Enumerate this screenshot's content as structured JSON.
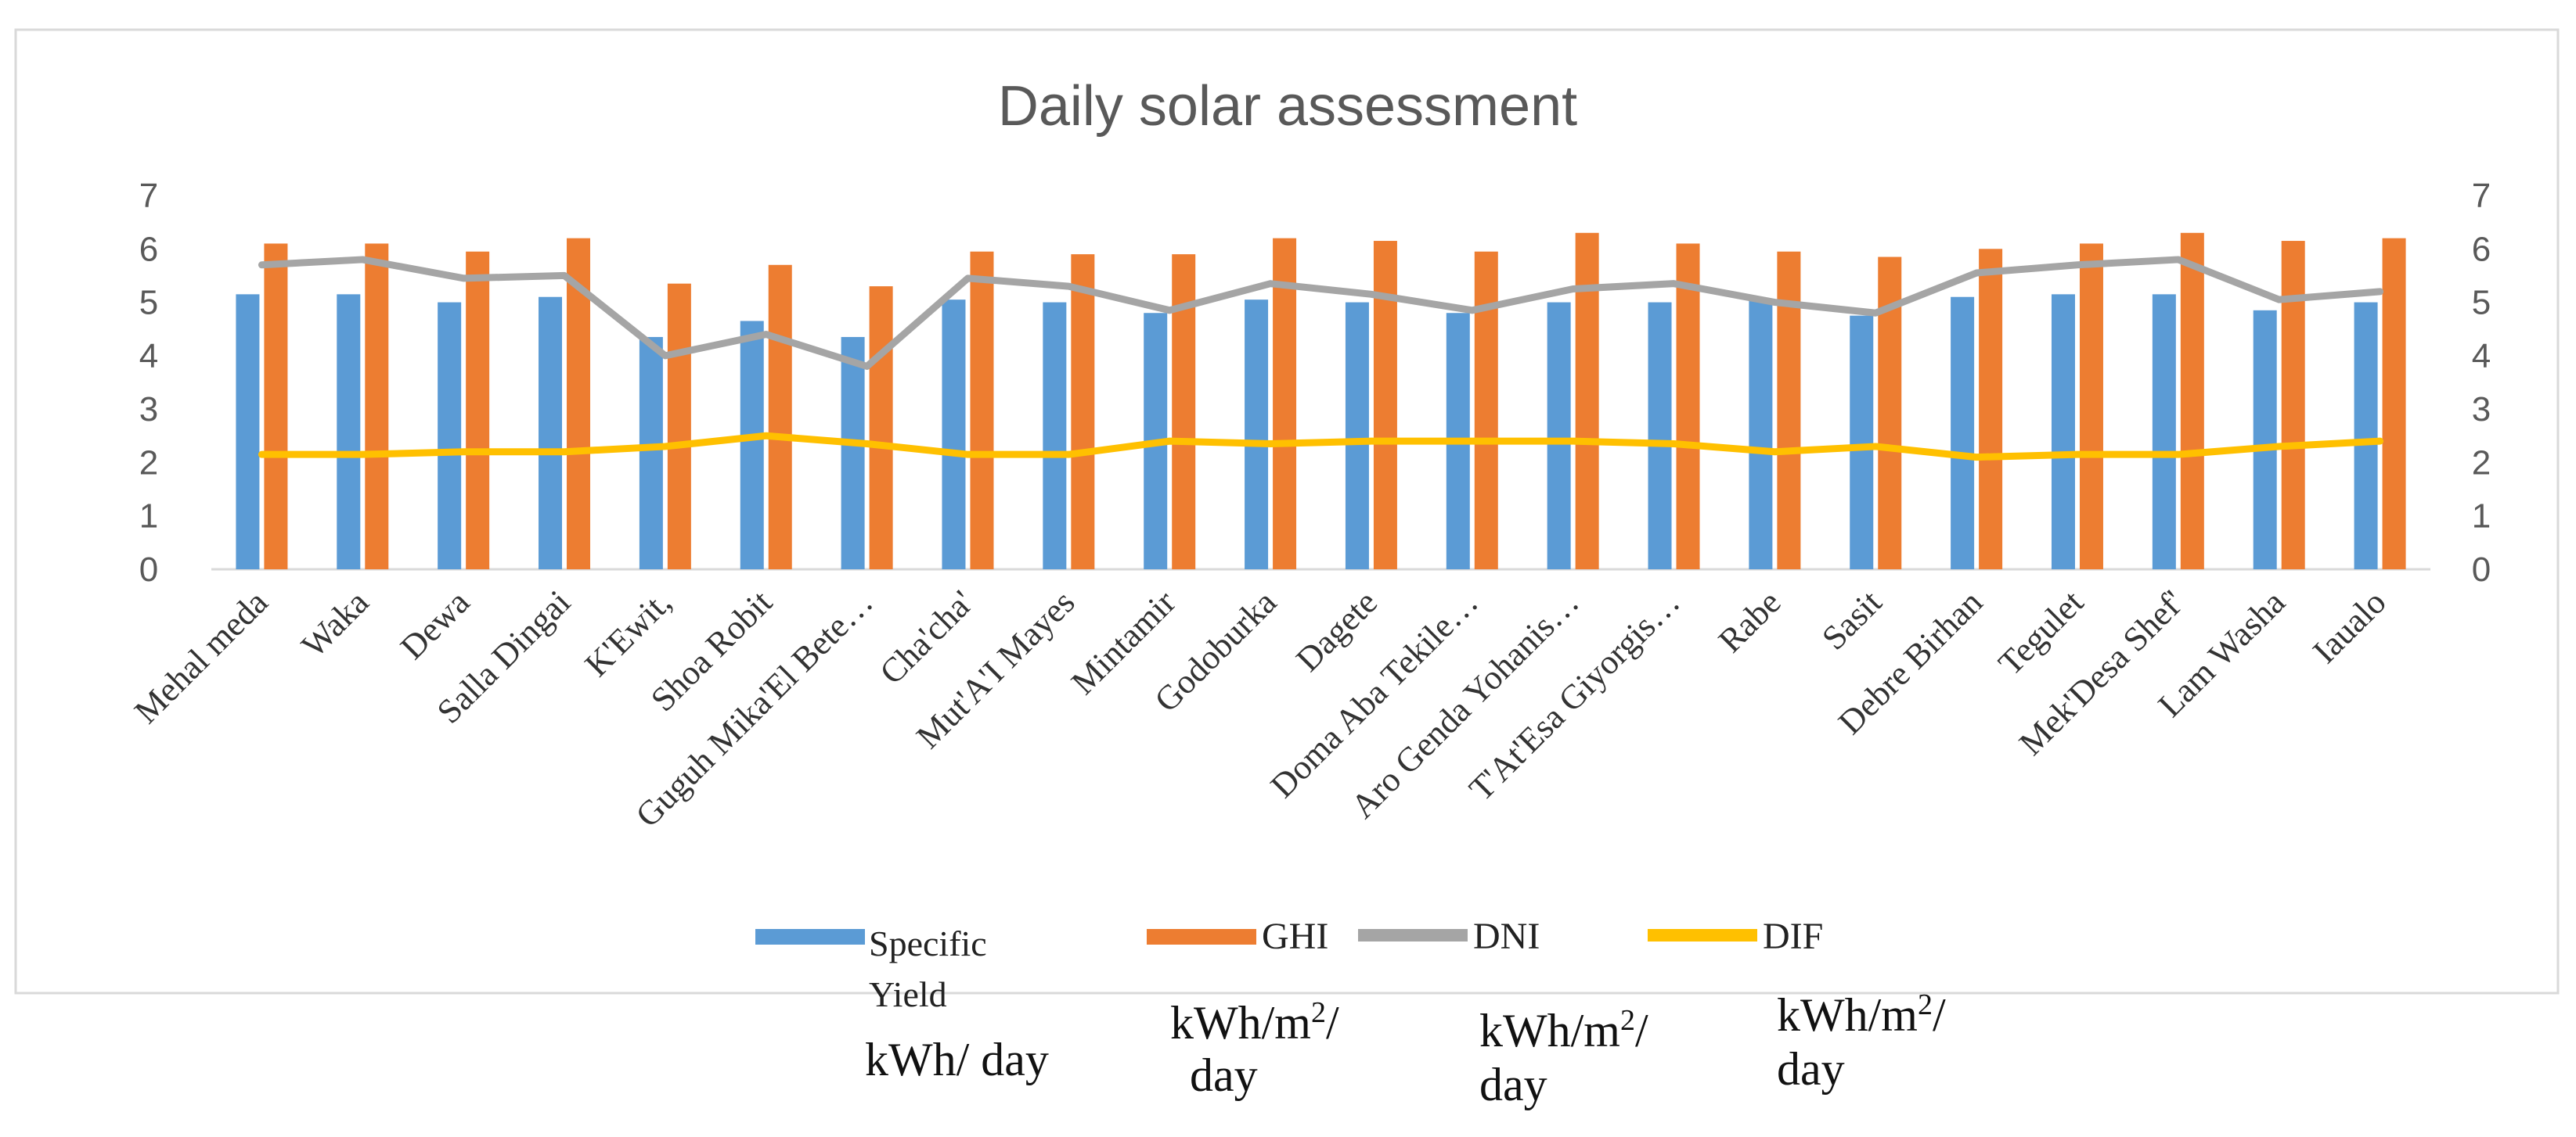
{
  "chart_data": {
    "type": "bar",
    "title": "Daily solar assessment",
    "xlabel": "",
    "ylabel": "",
    "ylim": [
      0,
      7
    ],
    "yticks": [
      0,
      1,
      2,
      3,
      4,
      5,
      6,
      7
    ],
    "grid": false,
    "legend_position": "bottom",
    "categories": [
      "Mehal meda",
      "Waka",
      "Dewa",
      "Salla Dingai",
      "K'Ewit,",
      "Shoa Robit",
      "Guguh Mika'El Bete…",
      "Cha'cha'",
      "Mut'A'I Mayes",
      "Mintamir",
      "Godoburka",
      "Dagete",
      "Doma Aba Tekile…",
      "Aro Genda Yohanis…",
      "T'At'Esa Giyorgis…",
      "Rabe",
      "Sasit",
      "Debre Birhan",
      "Tegulet",
      "Mek'Desa Shef'",
      "Lam Washa",
      "Iaualo"
    ],
    "series": [
      {
        "name": "Specific Yield",
        "type": "bar",
        "color": "#5B9BD5",
        "values": [
          5.15,
          5.15,
          5.0,
          5.1,
          4.35,
          4.65,
          4.35,
          5.05,
          5.0,
          4.8,
          5.05,
          5.0,
          4.8,
          5.0,
          5.0,
          5.05,
          4.75,
          5.1,
          5.15,
          5.15,
          4.85,
          5.0
        ]
      },
      {
        "name": "GHI",
        "type": "bar",
        "color": "#ED7D31",
        "values": [
          6.1,
          6.1,
          5.95,
          6.2,
          5.35,
          5.7,
          5.3,
          5.95,
          5.9,
          5.9,
          6.2,
          6.15,
          5.95,
          6.3,
          6.1,
          5.95,
          5.85,
          6.0,
          6.1,
          6.3,
          6.15,
          6.2
        ]
      },
      {
        "name": "DNI",
        "type": "line",
        "color": "#A5A5A5",
        "values": [
          5.7,
          5.8,
          5.45,
          5.5,
          4.0,
          4.4,
          3.8,
          5.45,
          5.3,
          4.85,
          5.35,
          5.15,
          4.85,
          5.25,
          5.35,
          5.0,
          4.8,
          5.55,
          5.7,
          5.8,
          5.05,
          5.2
        ]
      },
      {
        "name": "DIF",
        "type": "line",
        "color": "#FFC000",
        "values": [
          2.15,
          2.15,
          2.2,
          2.2,
          2.3,
          2.5,
          2.35,
          2.15,
          2.15,
          2.4,
          2.35,
          2.4,
          2.4,
          2.4,
          2.35,
          2.2,
          2.3,
          2.1,
          2.15,
          2.15,
          2.3,
          2.4
        ]
      }
    ]
  },
  "legend": {
    "yield_label_1": "Specific",
    "yield_label_2": "Yield",
    "ghi_label": "GHI",
    "dni_label": "DNI",
    "dif_label": "DIF"
  },
  "units": {
    "yield": "kWh/ day",
    "ghi_main": "kWh/m",
    "ghi_sup": "2",
    "ghi_tail": "/",
    "ghi_day": "day",
    "dni_main": "kWh/m",
    "dni_sup": "2",
    "dni_tail": "/",
    "dni_day": "day",
    "dif_main": "kWh/m",
    "dif_sup": "2",
    "dif_tail": "/",
    "dif_day": "day"
  }
}
